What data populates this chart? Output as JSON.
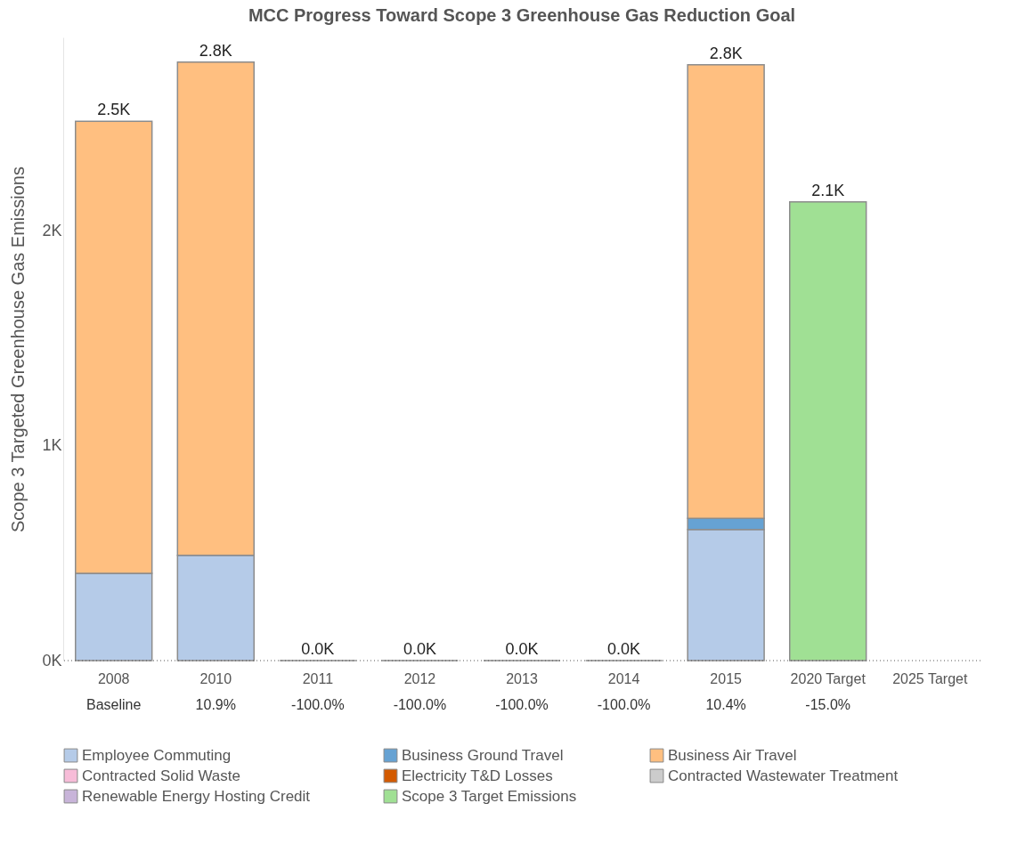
{
  "chart_data": {
    "type": "bar",
    "stacked": true,
    "title": "MCC Progress Toward Scope 3 Greenhouse Gas Reduction Goal",
    "ylabel": "Scope 3 Targeted Greenhouse Gas Emissions",
    "categories": [
      "2008",
      "2010",
      "2011",
      "2012",
      "2013",
      "2014",
      "2015",
      "2020 Target",
      "2025 Target"
    ],
    "series": [
      {
        "name": "Employee Commuting",
        "color": "#b5cbe8",
        "values": [
          406,
          490,
          null,
          null,
          null,
          null,
          610,
          null,
          null
        ]
      },
      {
        "name": "Business Ground Travel",
        "color": "#66a2d3",
        "values": [
          null,
          null,
          null,
          null,
          null,
          null,
          52,
          null,
          null
        ]
      },
      {
        "name": "Business Air Travel",
        "color": "#ffbf80",
        "values": [
          2104,
          2295,
          0,
          0,
          0,
          0,
          2111,
          null,
          null
        ]
      },
      {
        "name": "Contracted Solid Waste",
        "color": "#f7bcd8",
        "values": [
          null,
          null,
          null,
          null,
          null,
          null,
          null,
          null,
          null
        ]
      },
      {
        "name": "Electricity T&D Losses",
        "color": "#d35a00",
        "values": [
          null,
          null,
          null,
          null,
          null,
          null,
          null,
          null,
          null
        ]
      },
      {
        "name": "Contracted Wastewater Treatment",
        "color": "#cccccc",
        "values": [
          null,
          null,
          null,
          null,
          null,
          null,
          null,
          null,
          null
        ]
      },
      {
        "name": "Renewable Energy Hosting Credit",
        "color": "#c8b4d9",
        "values": [
          null,
          null,
          null,
          null,
          null,
          null,
          null,
          null,
          null
        ]
      },
      {
        "name": "Scope 3 Target Emissions",
        "color": "#a0e094",
        "values": [
          null,
          null,
          null,
          null,
          null,
          null,
          null,
          2135,
          null
        ]
      }
    ],
    "totals": [
      "2.5K",
      "2.8K",
      "0.0K",
      "0.0K",
      "0.0K",
      "0.0K",
      "2.8K",
      "2.1K",
      null
    ],
    "ylim": [
      0,
      2900
    ],
    "yticks": [
      {
        "value": 0,
        "label": "0K"
      },
      {
        "value": 1000,
        "label": "1K"
      },
      {
        "value": 2000,
        "label": "2K"
      }
    ],
    "grid": false,
    "ref_lines": [
      {
        "axis": "y",
        "value": 0,
        "line_style": "dotted",
        "color": "#555555"
      }
    ],
    "legend": "bottom",
    "annotations": [
      "Baseline",
      "10.9%",
      "-100.0%",
      "-100.0%",
      "-100.0%",
      "-100.0%",
      "10.4%",
      "-15.0%"
    ]
  }
}
